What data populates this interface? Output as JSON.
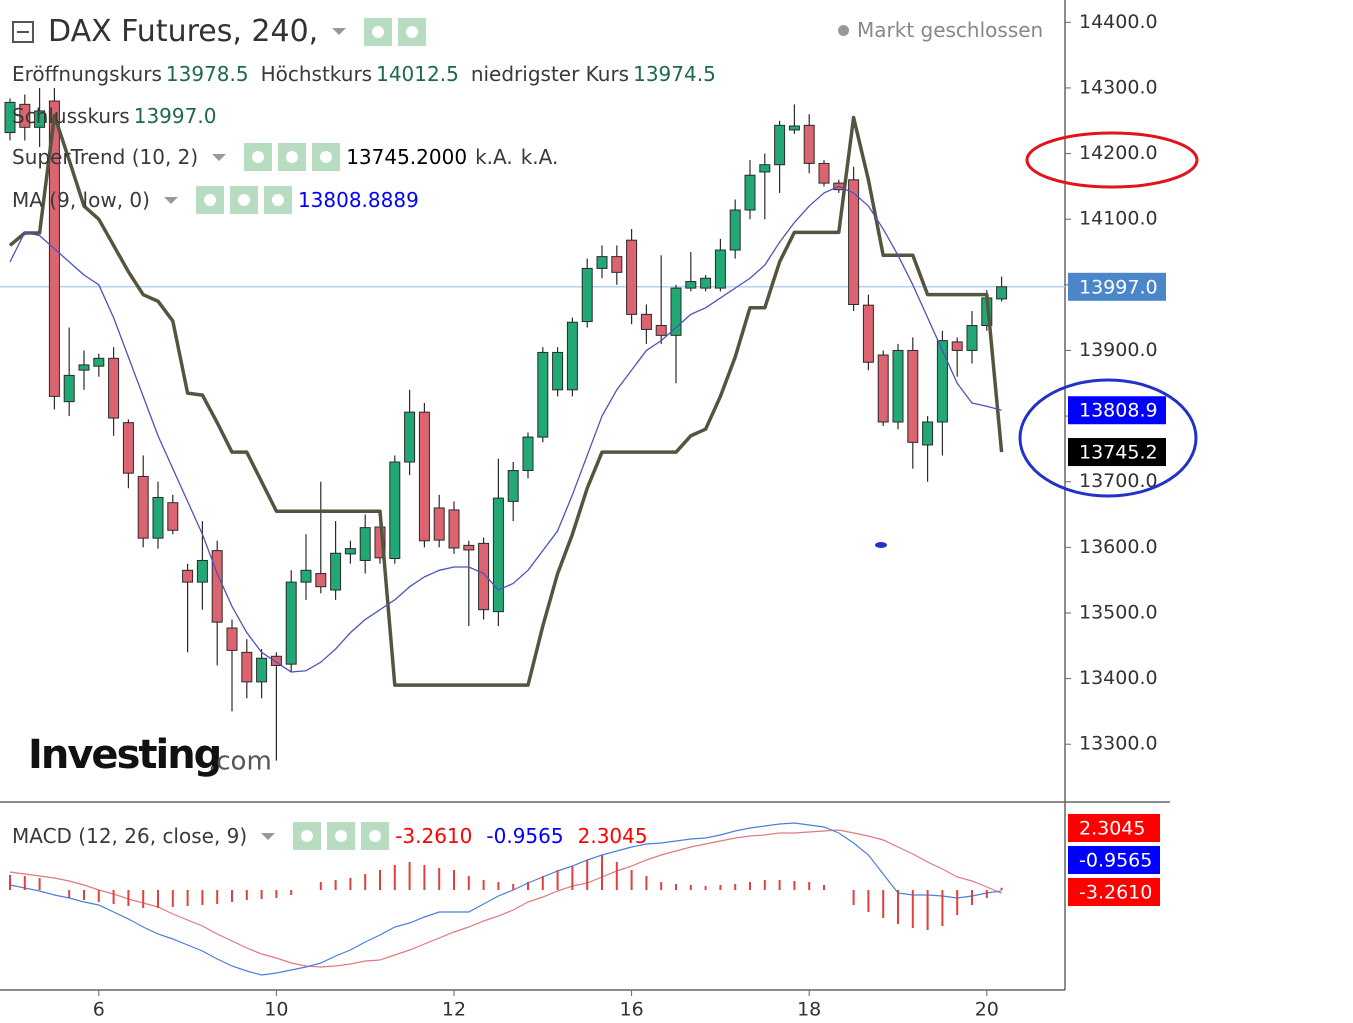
{
  "chart_data": [
    {
      "type": "candlestick",
      "title": "DAX Futures, 240,",
      "status": "Markt geschlossen",
      "ohlc_legend": [
        {
          "label": "Eröffnungskurs",
          "value": "13978.5"
        },
        {
          "label": "Höchstkurs",
          "value": "14012.5"
        },
        {
          "label": "niedrigster Kurs",
          "value": "13974.5"
        },
        {
          "label": "Schlusskurs",
          "value": "13997.0"
        }
      ],
      "watermark": {
        "brand": "Investing",
        "suffix": ".com"
      },
      "categories": [
        null,
        null,
        null,
        null,
        null,
        null,
        "6",
        null,
        null,
        null,
        null,
        null,
        null,
        null,
        null,
        null,
        null,
        null,
        "10",
        null,
        null,
        null,
        null,
        null,
        null,
        null,
        null,
        null,
        null,
        null,
        "12",
        null,
        null,
        null,
        null,
        null,
        null,
        null,
        null,
        null,
        null,
        null,
        "16",
        null,
        null,
        null,
        null,
        null,
        null,
        null,
        null,
        null,
        null,
        null,
        "18",
        null,
        null,
        null,
        null,
        null,
        null,
        null,
        null,
        null,
        null,
        null,
        "20",
        null
      ],
      "open": [
        14232,
        14275,
        14240,
        14280,
        13822,
        13870,
        13876,
        13888,
        13790,
        13708,
        13614,
        13668,
        13565,
        13547,
        13595,
        13477,
        13440,
        13395,
        13434,
        13422,
        13547,
        13560,
        13535,
        13590,
        13580,
        13631,
        13583,
        13730,
        13806,
        13660,
        13657,
        13603,
        13606,
        13502,
        13670,
        13717,
        13768,
        13840,
        13840,
        13944,
        14025,
        14043,
        14068,
        13955,
        13938,
        13923,
        13995,
        13995,
        13995,
        14053,
        14114,
        14172,
        14183,
        14236,
        14243,
        14185,
        14155,
        14160,
        13969,
        13893,
        13791,
        13900,
        13756,
        13791,
        13913,
        13900,
        13938,
        13978.5
      ],
      "high": [
        14284,
        14290,
        14300,
        14300,
        13935,
        13900,
        13895,
        13905,
        13795,
        13740,
        13700,
        13680,
        13575,
        13640,
        13610,
        13490,
        13460,
        13445,
        13440,
        13565,
        13620,
        13700,
        13640,
        13610,
        13650,
        13645,
        13740,
        13840,
        13820,
        13680,
        13670,
        13610,
        13615,
        13735,
        13730,
        13775,
        13905,
        13905,
        13950,
        14040,
        14060,
        14060,
        14085,
        13970,
        14045,
        14000,
        14050,
        14015,
        14070,
        14130,
        14190,
        14200,
        14250,
        14275,
        14260,
        14190,
        14160,
        14180,
        13985,
        13900,
        13910,
        13920,
        13800,
        13930,
        13920,
        13960,
        13992,
        14012.5
      ],
      "low": [
        14220,
        14220,
        14210,
        13810,
        13800,
        13840,
        13860,
        13770,
        13690,
        13600,
        13598,
        13620,
        13440,
        13505,
        13420,
        13350,
        13370,
        13370,
        13275,
        13410,
        13520,
        13530,
        13520,
        13575,
        13560,
        13575,
        13575,
        13710,
        13600,
        13600,
        13590,
        13480,
        13490,
        13480,
        13640,
        13705,
        13760,
        13830,
        13830,
        13935,
        14010,
        14000,
        13940,
        13910,
        13910,
        13850,
        13990,
        13990,
        13990,
        14040,
        14100,
        14100,
        14140,
        14230,
        14170,
        14150,
        14140,
        13960,
        13870,
        13785,
        13780,
        13720,
        13700,
        13740,
        13860,
        13880,
        13930,
        13974.5
      ],
      "close": [
        14278,
        14240,
        14265,
        13830,
        13862,
        13878,
        13888,
        13797,
        13713,
        13614,
        13676,
        13626,
        13547,
        13580,
        13486,
        13443,
        13395,
        13431,
        13420,
        13547,
        13565,
        13540,
        13591,
        13598,
        13630,
        13584,
        13730,
        13806,
        13610,
        13611,
        13599,
        13596,
        13505,
        13675,
        13717,
        13768,
        13897,
        13897,
        13943,
        14025,
        14043,
        14019,
        13955,
        13932,
        13923,
        13995,
        14005,
        14010,
        14053,
        14114,
        14167,
        14183,
        14243,
        14242,
        14185,
        14155,
        14145,
        13970,
        13882,
        13791,
        13900,
        13760,
        13791,
        13915,
        13900,
        13938,
        13980,
        13997
      ],
      "up_color": "#22a874",
      "down_color": "#dc6470",
      "outline_color": "#2b2b2b",
      "last_label": "13997.0",
      "last_color": "#4a86c8",
      "last_line_color": "#9cc0ee",
      "series": [
        {
          "name": "SuperTrend (10, 2)",
          "legend_value": "13745.2000",
          "extra": [
            "k.A.",
            "k.A."
          ],
          "last_label": "13745.2",
          "color": "#55553f",
          "tag_color": "#000000",
          "width": 3.5,
          "values": [
            14060,
            14079,
            14079,
            14258,
            14190,
            14120,
            14100,
            14060,
            14020,
            13985,
            13975,
            13945,
            13835,
            13832,
            13790,
            13745,
            13745,
            13700,
            13655,
            13655,
            13655,
            13655,
            13655,
            13655,
            13655,
            13655,
            13390,
            13390,
            13390,
            13390,
            13390,
            13390,
            13390,
            13390,
            13390,
            13390,
            13480,
            13560,
            13620,
            13690,
            13745,
            13745,
            13745,
            13745,
            13745,
            13745,
            13770,
            13780,
            13830,
            13890,
            13965,
            13965,
            14035,
            14080,
            14080,
            14080,
            14080,
            14255,
            14160,
            14045,
            14045,
            14045,
            13985,
            13985,
            13985,
            13985,
            13985,
            13745.2
          ]
        },
        {
          "name": "MA (9, low, 0)",
          "legend_value": "13808.8889",
          "last_label": "13808.9",
          "color": "#4a55b8",
          "tag_color": "#0000ff",
          "width": 1.3,
          "values": [
            14035,
            14080,
            14075,
            14055,
            14035,
            14015,
            14000,
            13950,
            13890,
            13830,
            13770,
            13720,
            13670,
            13620,
            13560,
            13510,
            13470,
            13440,
            13425,
            13410,
            13412,
            13425,
            13445,
            13470,
            13490,
            13505,
            13520,
            13540,
            13555,
            13565,
            13570,
            13570,
            13560,
            13535,
            13545,
            13565,
            13595,
            13625,
            13680,
            13740,
            13800,
            13840,
            13870,
            13900,
            13915,
            13935,
            13955,
            13965,
            13980,
            13995,
            14010,
            14030,
            14065,
            14095,
            14120,
            14140,
            14150,
            14140,
            14120,
            14085,
            14045,
            14000,
            13950,
            13900,
            13850,
            13820,
            13815,
            13808.8889
          ]
        }
      ],
      "ylim": [
        13215,
        14434
      ],
      "yticks": [
        {
          "value": 14400,
          "label": "14400.0"
        },
        {
          "value": 14300,
          "label": "14300.0"
        },
        {
          "value": 14200,
          "label": "14200.0"
        },
        {
          "value": 14100,
          "label": "14100.0"
        },
        {
          "value": 14000,
          "label": "14000.0"
        },
        {
          "value": 13900,
          "label": "13900.0"
        },
        {
          "value": 13800,
          "label": "13800.0"
        },
        {
          "value": 13700,
          "label": "13700.0"
        },
        {
          "value": 13600,
          "label": "13600.0"
        },
        {
          "value": 13500,
          "label": "13500.0"
        },
        {
          "value": 13400,
          "label": "13400.0"
        },
        {
          "value": 13300,
          "label": "13300.0"
        }
      ]
    },
    {
      "type": "macd",
      "title": "MACD (12, 26, close, 9)",
      "series": [
        {
          "style": "line",
          "label": "-3.2610",
          "color": "#e07a80",
          "tag_color": "#ff0000",
          "values": [
            18,
            16,
            14,
            12,
            9,
            5,
            0,
            -4,
            -9,
            -13,
            -17,
            -24,
            -30,
            -36,
            -44,
            -51,
            -58,
            -64,
            -68,
            -73,
            -76,
            -77,
            -76,
            -74,
            -71,
            -70,
            -65,
            -60,
            -54,
            -48,
            -42,
            -37,
            -31,
            -26,
            -20,
            -12,
            -7,
            -1,
            4,
            7,
            13,
            19,
            24,
            30,
            35,
            39,
            43,
            46,
            49,
            52,
            54,
            55,
            57,
            57,
            58,
            59,
            60,
            57,
            54,
            50,
            43,
            36,
            28,
            21,
            13,
            9,
            3,
            -3.261
          ]
        },
        {
          "style": "line",
          "label": "-0.9565",
          "color": "#4a80d8",
          "tag_color": "#0000ff",
          "values": [
            5,
            2,
            -1,
            -5,
            -8,
            -12,
            -15,
            -22,
            -29,
            -37,
            -44,
            -49,
            -55,
            -61,
            -69,
            -76,
            -81,
            -85,
            -83,
            -80,
            -77,
            -73,
            -66,
            -60,
            -52,
            -45,
            -37,
            -33,
            -27,
            -22,
            -22,
            -22,
            -14,
            -6,
            0,
            7,
            13,
            19,
            24,
            30,
            35,
            39,
            43,
            46,
            47,
            49,
            51,
            52,
            55,
            59,
            62,
            64,
            66,
            67,
            65,
            63,
            57,
            47,
            35,
            16,
            -3,
            -5,
            -5,
            -6,
            -8,
            -6,
            -3,
            -0.9565
          ]
        },
        {
          "style": "histogram",
          "label": "2.3045",
          "color": "#e2403c",
          "tag_color": "#ff0000",
          "values": [
            15,
            14,
            12,
            0,
            -8,
            -10,
            -12,
            -14,
            -16,
            -18,
            -18,
            -17,
            -16,
            -15,
            -14,
            -12,
            -10,
            -9,
            -8,
            -5,
            0,
            8,
            10,
            12,
            16,
            20,
            25,
            28,
            25,
            22,
            20,
            14,
            10,
            8,
            6,
            8,
            14,
            20,
            24,
            30,
            35,
            28,
            20,
            14,
            8,
            6,
            5,
            4,
            5,
            6,
            8,
            10,
            10,
            9,
            8,
            5,
            0,
            -15,
            -22,
            -28,
            -34,
            -38,
            -40,
            -36,
            -25,
            -15,
            -8,
            2.3045
          ]
        }
      ],
      "ylim": [
        -100,
        85
      ]
    }
  ]
}
